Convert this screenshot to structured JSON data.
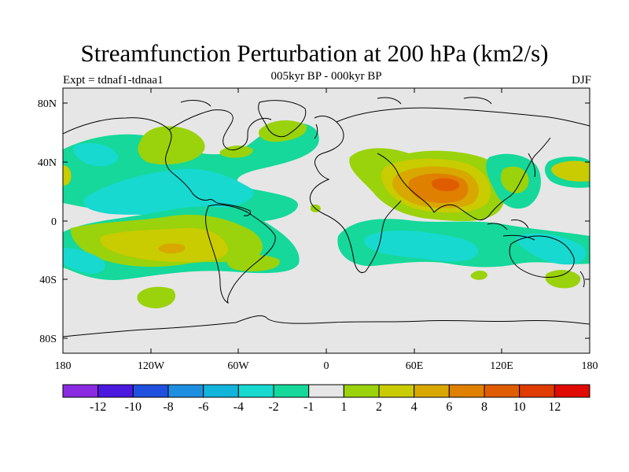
{
  "title": "Streamfunction Perturbation at 200 hPa (km2/s)",
  "subtitle": "005kyr BP - 000kyr BP",
  "left_label": "Expt = tdnaf1-tdnaa1",
  "right_label": "DJF",
  "map": {
    "lat_labels": [
      "80N",
      "40N",
      "0",
      "40S",
      "80S"
    ],
    "lon_labels": [
      "180",
      "120W",
      "60W",
      "0",
      "60E",
      "120E",
      "180"
    ]
  },
  "colorbar": {
    "colors": [
      "#8a2be2",
      "#4b18e0",
      "#2050e0",
      "#1e8fe0",
      "#11b5dc",
      "#17d9cf",
      "#15d89a",
      "#e6e6e6",
      "#9ad20c",
      "#c9cc00",
      "#d8a800",
      "#e08000",
      "#e05c00",
      "#e03c00",
      "#e00a00"
    ],
    "labels": [
      "-12",
      "-10",
      "-8",
      "-6",
      "-4",
      "-2",
      "-1",
      "1",
      "2",
      "4",
      "6",
      "8",
      "10",
      "12"
    ]
  },
  "colors": {
    "background": "#e6e6e6",
    "green": "#15d89a",
    "cyan": "#17d9cf",
    "lime": "#9ad20c",
    "yellow": "#c9cc00",
    "gold": "#d8a800",
    "orange": "#e08000",
    "dark_orange": "#e05c00"
  }
}
